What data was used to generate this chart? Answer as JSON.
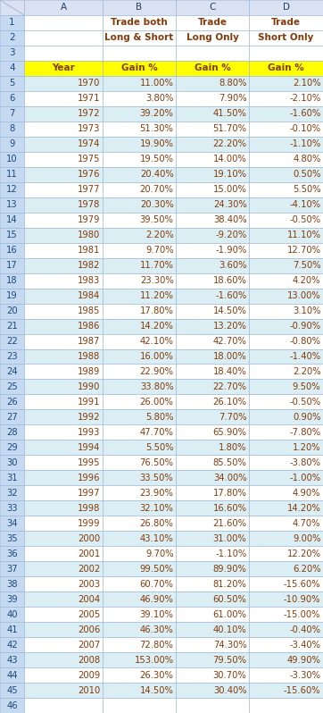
{
  "header_row1_b": "Trade both",
  "header_row1_c": "Trade",
  "header_row1_d": "Trade",
  "header_row2_b": "Long & Short",
  "header_row2_c": "Long Only",
  "header_row2_d": "Short Only",
  "years": [
    1970,
    1971,
    1972,
    1973,
    1974,
    1975,
    1976,
    1977,
    1978,
    1979,
    1980,
    1981,
    1982,
    1983,
    1984,
    1985,
    1986,
    1987,
    1988,
    1989,
    1990,
    1991,
    1992,
    1993,
    1994,
    1995,
    1996,
    1997,
    1998,
    1999,
    2000,
    2001,
    2002,
    2003,
    2004,
    2005,
    2006,
    2007,
    2008,
    2009,
    2010
  ],
  "col_b": [
    11.0,
    3.8,
    39.2,
    51.3,
    19.9,
    19.5,
    20.4,
    20.7,
    20.3,
    39.5,
    2.2,
    9.7,
    11.7,
    23.3,
    11.2,
    17.8,
    14.2,
    42.1,
    16.0,
    22.9,
    33.8,
    26.0,
    5.8,
    47.7,
    5.5,
    76.5,
    33.5,
    23.9,
    32.1,
    26.8,
    43.1,
    9.7,
    99.5,
    60.7,
    46.9,
    39.1,
    46.3,
    72.8,
    153.0,
    26.3,
    14.5
  ],
  "col_c": [
    8.8,
    7.9,
    41.5,
    51.7,
    22.2,
    14.0,
    19.1,
    15.0,
    24.3,
    38.4,
    -9.2,
    -1.9,
    3.6,
    18.6,
    -1.6,
    14.5,
    13.2,
    42.7,
    18.0,
    18.4,
    22.7,
    26.1,
    7.7,
    65.9,
    1.8,
    85.5,
    34.0,
    17.8,
    16.6,
    21.6,
    31.0,
    -1.1,
    89.9,
    81.2,
    60.5,
    61.0,
    40.1,
    74.3,
    79.5,
    30.7,
    30.4
  ],
  "col_d": [
    2.1,
    -2.1,
    -1.6,
    -0.1,
    -1.1,
    4.8,
    0.5,
    5.5,
    -4.1,
    -0.5,
    11.1,
    12.7,
    7.5,
    4.2,
    13.0,
    3.1,
    -0.9,
    -0.8,
    -1.4,
    2.2,
    9.5,
    -0.5,
    0.9,
    -7.8,
    1.2,
    -3.8,
    -1.0,
    4.9,
    14.2,
    4.7,
    9.0,
    12.2,
    6.2,
    -15.6,
    -10.9,
    -15.0,
    -0.4,
    -3.4,
    49.9,
    -3.3,
    -15.6
  ],
  "yellow": "#FFFF00",
  "white": "#FFFFFF",
  "light_blue_row": "#DCE6F1",
  "light_blue_cell": "#DAEEF3",
  "row_num_bg": "#C5D9F1",
  "col_hdr_bg": "#D9E1F2",
  "grid_color": "#95B3D7",
  "corner_bg": "#D9E1F2",
  "text_brown": "#843C0C",
  "text_blue": "#1F497D",
  "text_dark": "#243F60"
}
